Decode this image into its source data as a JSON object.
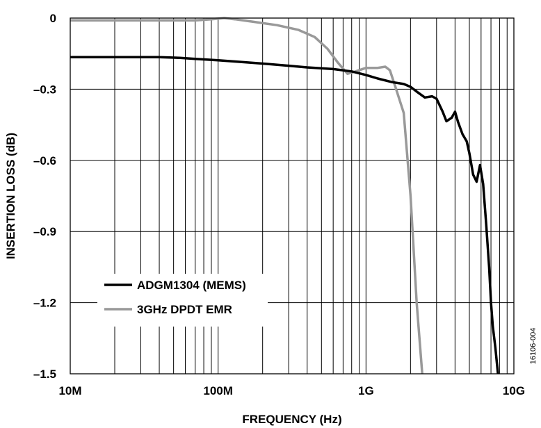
{
  "chart_data": {
    "type": "line",
    "xlabel": "FREQUENCY (Hz)",
    "ylabel": "INSERTION LOSS (dB)",
    "x_scale": "log",
    "xlim": [
      10000000,
      10000000000
    ],
    "ylim": [
      -1.5,
      0
    ],
    "x_ticks": [
      {
        "value": 10000000,
        "label": "10M"
      },
      {
        "value": 100000000,
        "label": "100M"
      },
      {
        "value": 1000000000,
        "label": "1G"
      },
      {
        "value": 10000000000,
        "label": "10G"
      }
    ],
    "y_ticks": [
      {
        "value": 0,
        "label": "0"
      },
      {
        "value": -0.3,
        "label": "–0.3"
      },
      {
        "value": -0.6,
        "label": "–0.6"
      },
      {
        "value": -0.9,
        "label": "–0.9"
      },
      {
        "value": -1.2,
        "label": "–1.2"
      },
      {
        "value": -1.5,
        "label": "–1.5"
      }
    ],
    "grid": true,
    "legend_position": "bottom-left",
    "series": [
      {
        "name": "ADGM1304 (MEMS)",
        "color": "#000000",
        "points": [
          [
            10000000,
            -0.165
          ],
          [
            20000000,
            -0.165
          ],
          [
            40000000,
            -0.165
          ],
          [
            55000000,
            -0.168
          ],
          [
            70000000,
            -0.172
          ],
          [
            100000000,
            -0.178
          ],
          [
            150000000,
            -0.186
          ],
          [
            200000000,
            -0.192
          ],
          [
            300000000,
            -0.201
          ],
          [
            400000000,
            -0.208
          ],
          [
            600000000,
            -0.215
          ],
          [
            800000000,
            -0.225
          ],
          [
            1000000000,
            -0.24
          ],
          [
            1200000000,
            -0.255
          ],
          [
            1500000000,
            -0.27
          ],
          [
            1800000000,
            -0.278
          ],
          [
            2000000000,
            -0.29
          ],
          [
            2200000000,
            -0.31
          ],
          [
            2500000000,
            -0.335
          ],
          [
            2800000000,
            -0.33
          ],
          [
            3000000000,
            -0.34
          ],
          [
            3300000000,
            -0.395
          ],
          [
            3500000000,
            -0.435
          ],
          [
            3800000000,
            -0.42
          ],
          [
            4000000000,
            -0.395
          ],
          [
            4200000000,
            -0.44
          ],
          [
            4500000000,
            -0.49
          ],
          [
            4800000000,
            -0.52
          ],
          [
            5000000000,
            -0.57
          ],
          [
            5300000000,
            -0.66
          ],
          [
            5600000000,
            -0.69
          ],
          [
            5900000000,
            -0.62
          ],
          [
            6200000000,
            -0.7
          ],
          [
            6500000000,
            -0.87
          ],
          [
            6800000000,
            -1.05
          ],
          [
            7000000000,
            -1.2
          ],
          [
            7200000000,
            -1.3
          ],
          [
            7500000000,
            -1.39
          ],
          [
            7800000000,
            -1.5
          ]
        ]
      },
      {
        "name": "3GHz DPDT EMR",
        "color": "#999999",
        "points": [
          [
            10000000,
            -0.01
          ],
          [
            40000000,
            -0.01
          ],
          [
            70000000,
            -0.01
          ],
          [
            90000000,
            -0.005
          ],
          [
            110000000,
            0.0
          ],
          [
            130000000,
            -0.005
          ],
          [
            170000000,
            -0.015
          ],
          [
            250000000,
            -0.03
          ],
          [
            350000000,
            -0.05
          ],
          [
            450000000,
            -0.08
          ],
          [
            550000000,
            -0.13
          ],
          [
            650000000,
            -0.19
          ],
          [
            750000000,
            -0.235
          ],
          [
            850000000,
            -0.225
          ],
          [
            1000000000,
            -0.21
          ],
          [
            1200000000,
            -0.21
          ],
          [
            1350000000,
            -0.205
          ],
          [
            1450000000,
            -0.22
          ],
          [
            1600000000,
            -0.3
          ],
          [
            1800000000,
            -0.4
          ],
          [
            2000000000,
            -0.75
          ],
          [
            2200000000,
            -1.2
          ],
          [
            2400000000,
            -1.5
          ]
        ]
      }
    ],
    "annotations": [
      "16106-004"
    ]
  }
}
